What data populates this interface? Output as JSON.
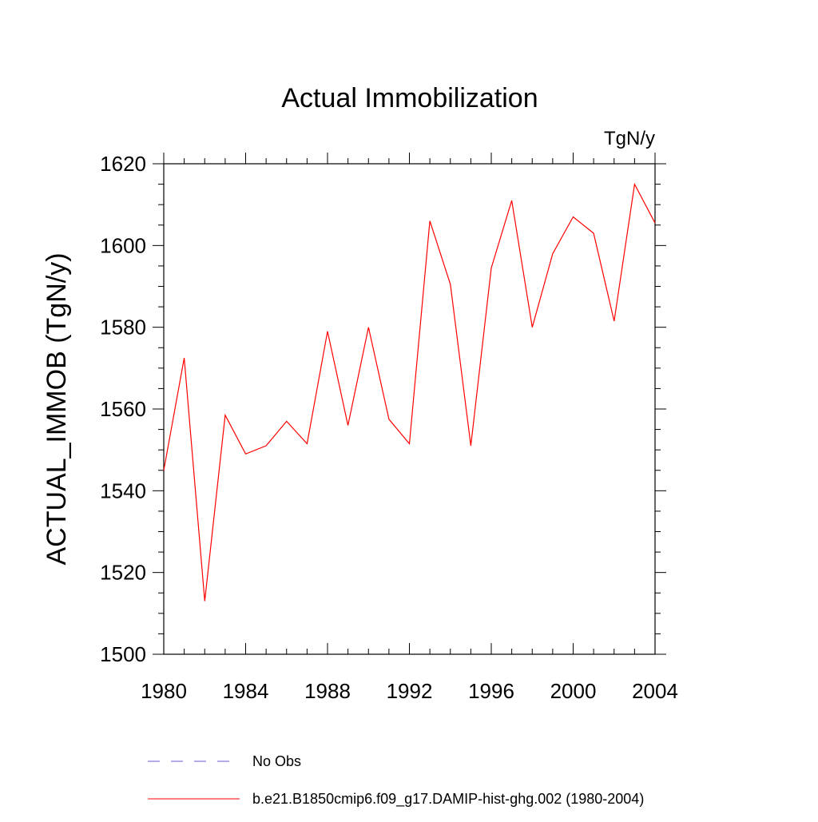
{
  "chart_data": {
    "type": "line",
    "title": "Actual Immobilization",
    "units": "TgN/y",
    "xlabel": "",
    "ylabel": "ACTUAL_IMMOB  (TgN/y)",
    "xlim": [
      1980,
      2004
    ],
    "ylim": [
      1500,
      1620
    ],
    "x_ticks": [
      1980,
      1984,
      1988,
      1992,
      1996,
      2000,
      2004
    ],
    "y_ticks": [
      1500,
      1520,
      1540,
      1560,
      1580,
      1600,
      1620
    ],
    "grid": false,
    "legend_position": "bottom",
    "series": [
      {
        "name": "No Obs",
        "color": "#6a5acd",
        "style": "dashed",
        "x": [],
        "y": []
      },
      {
        "name": "b.e21.B1850cmip6.f09_g17.DAMIP-hist-ghg.002 (1980-2004)",
        "color": "#ff0000",
        "style": "solid",
        "x": [
          1980,
          1981,
          1982,
          1983,
          1984,
          1985,
          1986,
          1987,
          1988,
          1989,
          1990,
          1991,
          1992,
          1993,
          1994,
          1995,
          1996,
          1997,
          1998,
          1999,
          2000,
          2001,
          2002,
          2003,
          2004
        ],
        "y": [
          1545,
          1572.5,
          1513,
          1558.5,
          1549,
          1551,
          1557,
          1551.5,
          1579,
          1556,
          1580,
          1557.5,
          1551.5,
          1606,
          1590.5,
          1551,
          1594.5,
          1611,
          1580,
          1598,
          1607,
          1603,
          1581.5,
          1615,
          1605.5
        ]
      }
    ]
  }
}
